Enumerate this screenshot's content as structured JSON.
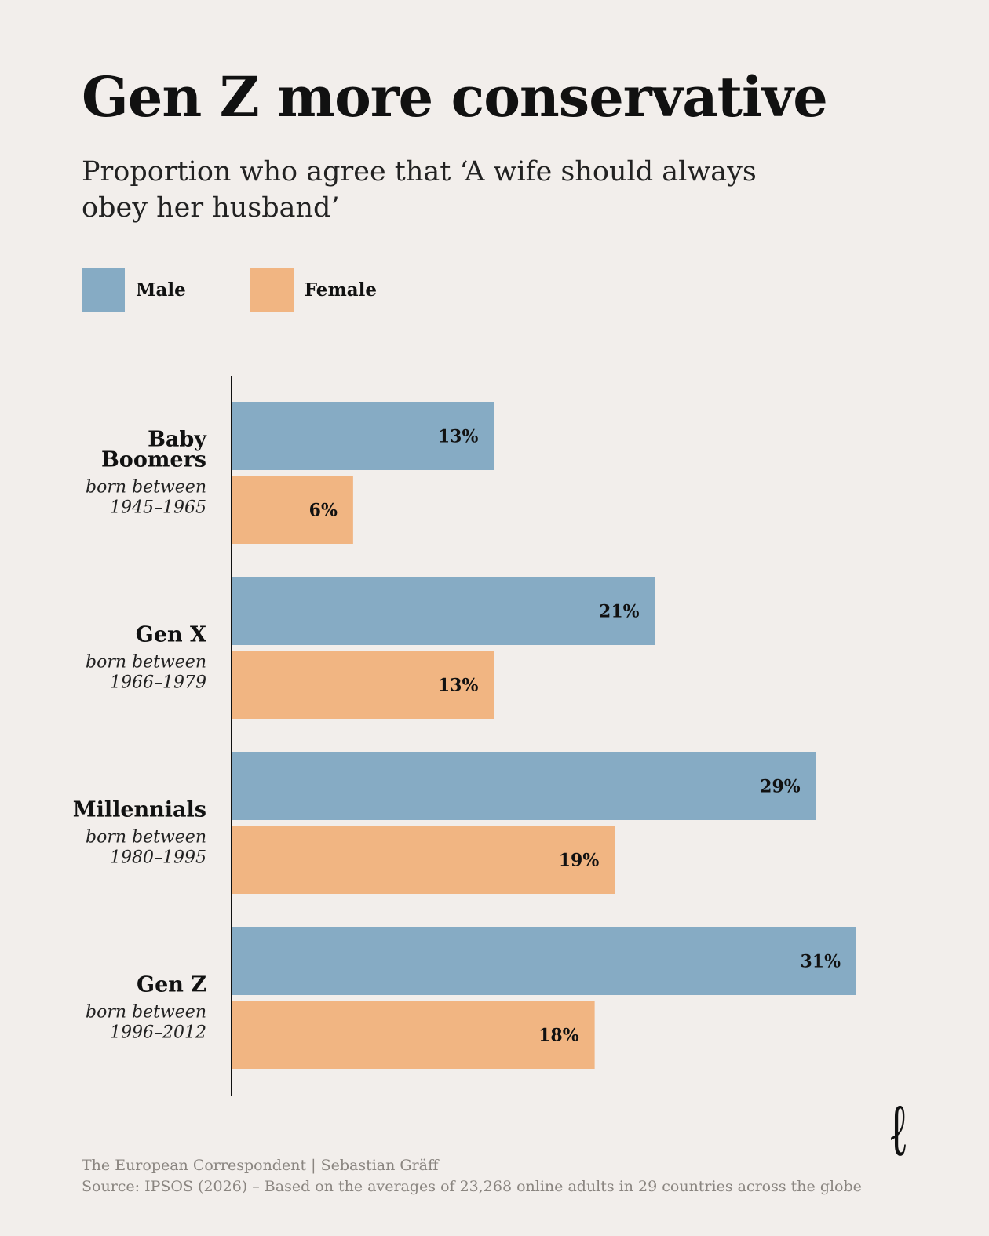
{
  "chart_data": {
    "type": "bar",
    "orientation": "horizontal",
    "title": "Gen Z more conservative",
    "subtitle": "Proportion who agree that ‘A wife should always obey her husband’",
    "categories": [
      {
        "name": "Baby Boomers",
        "name_lines": [
          "Baby",
          "Boomers"
        ],
        "born": [
          "born between",
          "1945–1965"
        ]
      },
      {
        "name": "Gen X",
        "name_lines": [
          "Gen X"
        ],
        "born": [
          "born between",
          "1966–1979"
        ]
      },
      {
        "name": "Millennials",
        "name_lines": [
          "Millennials"
        ],
        "born": [
          "born between",
          "1980–1995"
        ]
      },
      {
        "name": "Gen Z",
        "name_lines": [
          "Gen Z"
        ],
        "born": [
          "born between",
          "1996–2012"
        ]
      }
    ],
    "series": [
      {
        "name": "Male",
        "color": "#86abc4",
        "values": [
          13,
          21,
          29,
          31
        ]
      },
      {
        "name": "Female",
        "color": "#f1b582",
        "values": [
          6,
          13,
          19,
          18
        ]
      }
    ],
    "value_suffix": "%",
    "xlim": [
      0,
      31
    ],
    "grid": false,
    "legend_position": "top-left"
  },
  "footer": {
    "credit": "The European Correspondent | Sebastian Gräff",
    "source": "Source: IPSOS (2026) – Based on the averages of 23,268 online adults in 29 countries across the globe"
  },
  "logo": {
    "text": "e"
  }
}
